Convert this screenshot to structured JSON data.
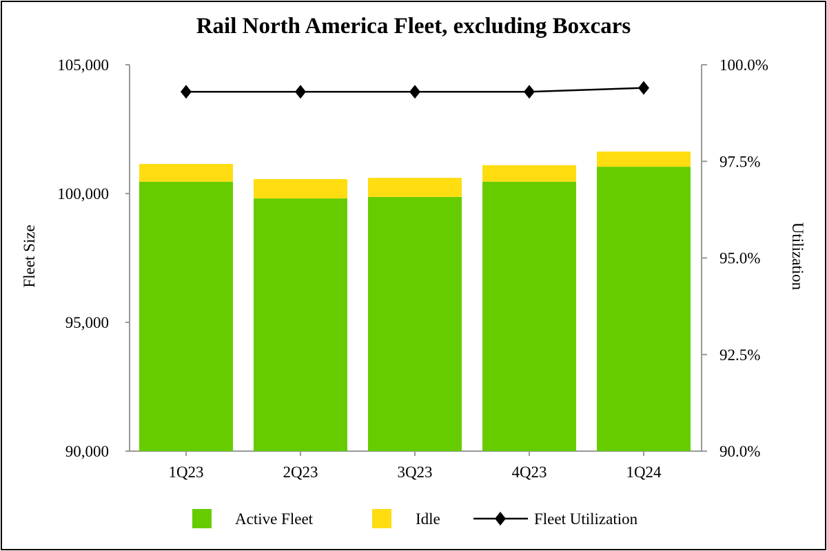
{
  "chart_data": {
    "type": "bar",
    "title": "Rail North America Fleet, excluding Boxcars",
    "ylabel": "Fleet Size",
    "y2label": "Utilization",
    "categories": [
      "1Q23",
      "2Q23",
      "3Q23",
      "4Q23",
      "1Q24"
    ],
    "ylim": [
      90000,
      105000
    ],
    "yticks": [
      "90,000",
      "95,000",
      "100,000",
      "105,000"
    ],
    "y2lim": [
      90.0,
      100.0
    ],
    "y2ticks": [
      "90.0%",
      "92.5%",
      "95.0%",
      "97.5%",
      "100.0%"
    ],
    "stacked": true,
    "series": [
      {
        "name": "Active Fleet",
        "type": "bar",
        "color": "#66CC00",
        "values": [
          100460,
          99810,
          99870,
          100460,
          101040
        ]
      },
      {
        "name": "Idle",
        "type": "bar",
        "color": "#FFDD11",
        "values": [
          690,
          750,
          740,
          640,
          590
        ]
      },
      {
        "name": "Fleet Utilization",
        "type": "line",
        "axis": "right",
        "color": "#000000",
        "marker": "diamond",
        "values": [
          99.3,
          99.3,
          99.3,
          99.3,
          99.4
        ]
      }
    ],
    "grid": false,
    "legend": "bottom"
  }
}
